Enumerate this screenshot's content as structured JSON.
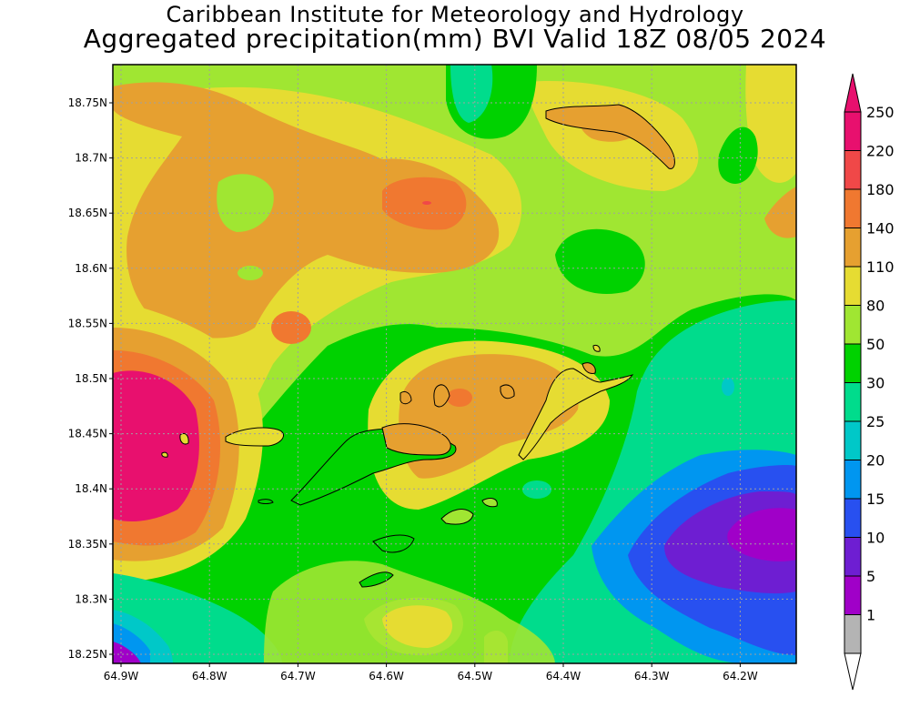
{
  "title": {
    "line1": "Caribbean Institute for Meteorology and Hydrology",
    "line2": "Aggregated precipitation(mm) BVI Valid 18Z 08/05 2024"
  },
  "map": {
    "lat_ticks": [
      "18.75N",
      "18.7N",
      "18.65N",
      "18.6N",
      "18.55N",
      "18.5N",
      "18.45N",
      "18.4N",
      "18.35N",
      "18.3N",
      "18.25N"
    ],
    "lon_ticks": [
      "64.9W",
      "64.8W",
      "64.7W",
      "64.6W",
      "64.5W",
      "64.4W",
      "64.3W",
      "64.2W"
    ],
    "grid": true
  },
  "legend": {
    "unit": "mm",
    "bins": [
      {
        "label": "250",
        "color": "#e8106e"
      },
      {
        "label": "220",
        "color": "#f04848"
      },
      {
        "label": "180",
        "color": "#f07830"
      },
      {
        "label": "140",
        "color": "#e6a030"
      },
      {
        "label": "110",
        "color": "#e6dc32"
      },
      {
        "label": "80",
        "color": "#a0e632"
      },
      {
        "label": "50",
        "color": "#00d200"
      },
      {
        "label": "30",
        "color": "#00dc8c"
      },
      {
        "label": "25",
        "color": "#00c8c8"
      },
      {
        "label": "20",
        "color": "#0096f0"
      },
      {
        "label": "15",
        "color": "#2850f0"
      },
      {
        "label": "10",
        "color": "#6e1ed2"
      },
      {
        "label": "5",
        "color": "#a000c8"
      },
      {
        "label": "1",
        "color": "#b4b4b4"
      }
    ],
    "top_color": "#e8106e",
    "bottom_color": "#ffffff"
  },
  "colors": {
    "magenta": "#e8106e",
    "red": "#f04848",
    "orange": "#f07830",
    "lightorange": "#e6a030",
    "yellow": "#e6dc32",
    "lightgreen": "#a0e632",
    "green": "#00d200",
    "teal": "#00dc8c",
    "cyan": "#00c8c8",
    "sky": "#0096f0",
    "blue": "#2850f0",
    "indigo": "#6e1ed2",
    "purple": "#a000c8",
    "land_outline": "#000000"
  }
}
